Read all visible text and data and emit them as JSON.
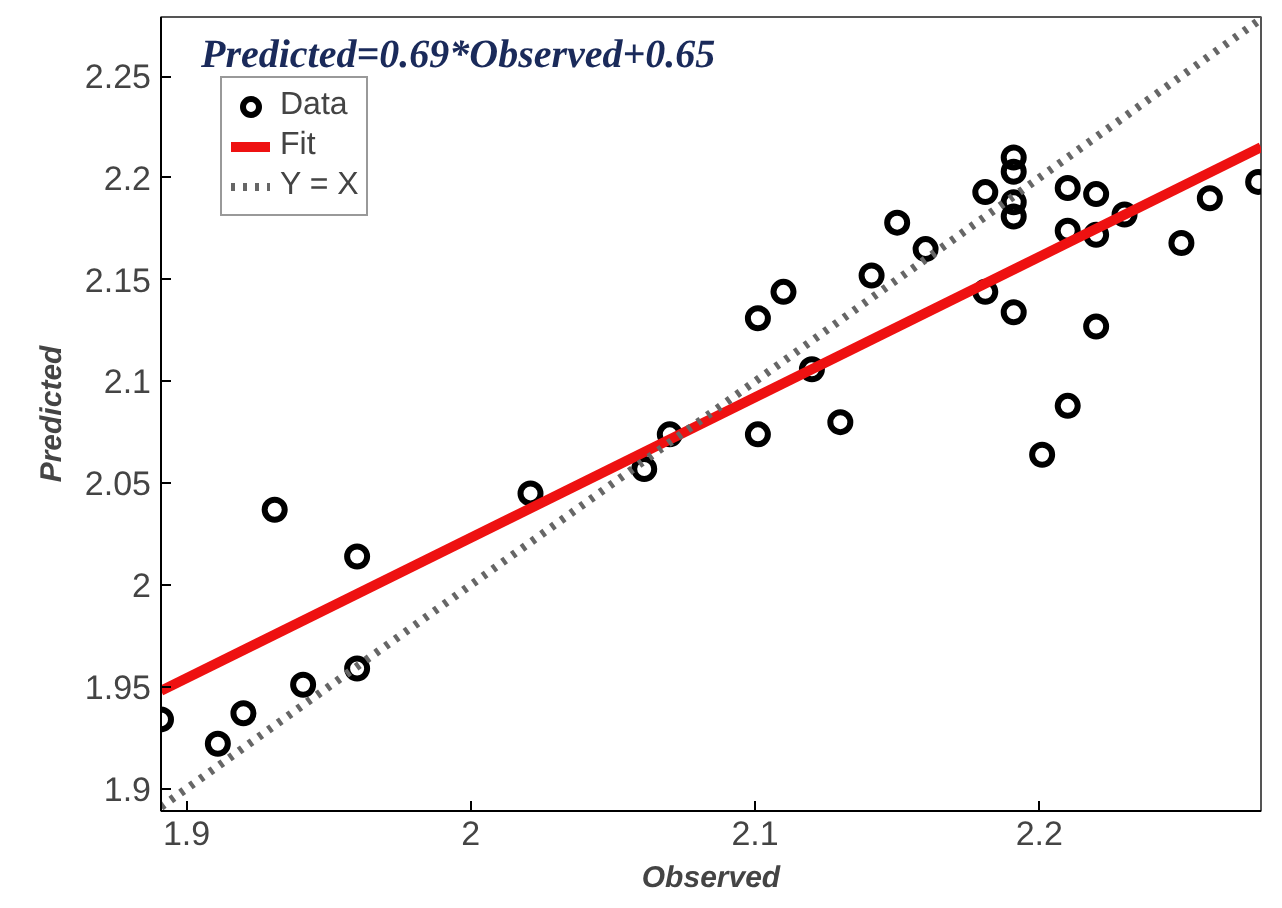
{
  "chart_data": {
    "type": "scatter",
    "title": "Predicted=0.69*Observed+0.65",
    "xlabel": "Observed",
    "ylabel": "Predicted",
    "xlim": [
      1.891,
      2.278
    ],
    "ylim": [
      1.889,
      2.279
    ],
    "xticks": [
      1.9,
      2,
      2.1,
      2.2
    ],
    "yticks": [
      1.9,
      1.95,
      2,
      2.05,
      2.1,
      2.15,
      2.2,
      2.25
    ],
    "grid": false,
    "legend": "top left",
    "series": [
      {
        "name": "Data",
        "marker": "circle",
        "color": "#000000",
        "x": [
          1.891,
          1.911,
          1.92,
          1.931,
          1.941,
          1.96,
          1.96,
          2.021,
          2.061,
          2.07,
          2.101,
          2.101,
          2.11,
          2.12,
          2.13,
          2.141,
          2.15,
          2.16,
          2.181,
          2.181,
          2.191,
          2.191,
          2.191,
          2.191,
          2.191,
          2.201,
          2.21,
          2.21,
          2.21,
          2.22,
          2.22,
          2.22,
          2.23,
          2.25,
          2.26,
          2.277
        ],
        "values": [
          1.934,
          1.922,
          1.937,
          2.037,
          1.951,
          2.014,
          1.959,
          2.045,
          2.057,
          2.074,
          2.074,
          2.131,
          2.144,
          2.106,
          2.08,
          2.152,
          2.178,
          2.165,
          2.193,
          2.144,
          2.21,
          2.203,
          2.188,
          2.181,
          2.134,
          2.064,
          2.195,
          2.174,
          2.088,
          2.192,
          2.172,
          2.127,
          2.182,
          2.168,
          2.19,
          2.198
        ]
      },
      {
        "name": "Fit",
        "type": "line",
        "color": "#ee1111",
        "line_style": "solid",
        "x": [
          1.891,
          2.278
        ],
        "values": [
          1.948,
          2.215
        ]
      },
      {
        "name": "Y = X",
        "type": "line",
        "color": "#666666",
        "line_style": "dotted",
        "x": [
          1.891,
          2.278
        ],
        "values": [
          1.891,
          2.278
        ]
      }
    ]
  }
}
